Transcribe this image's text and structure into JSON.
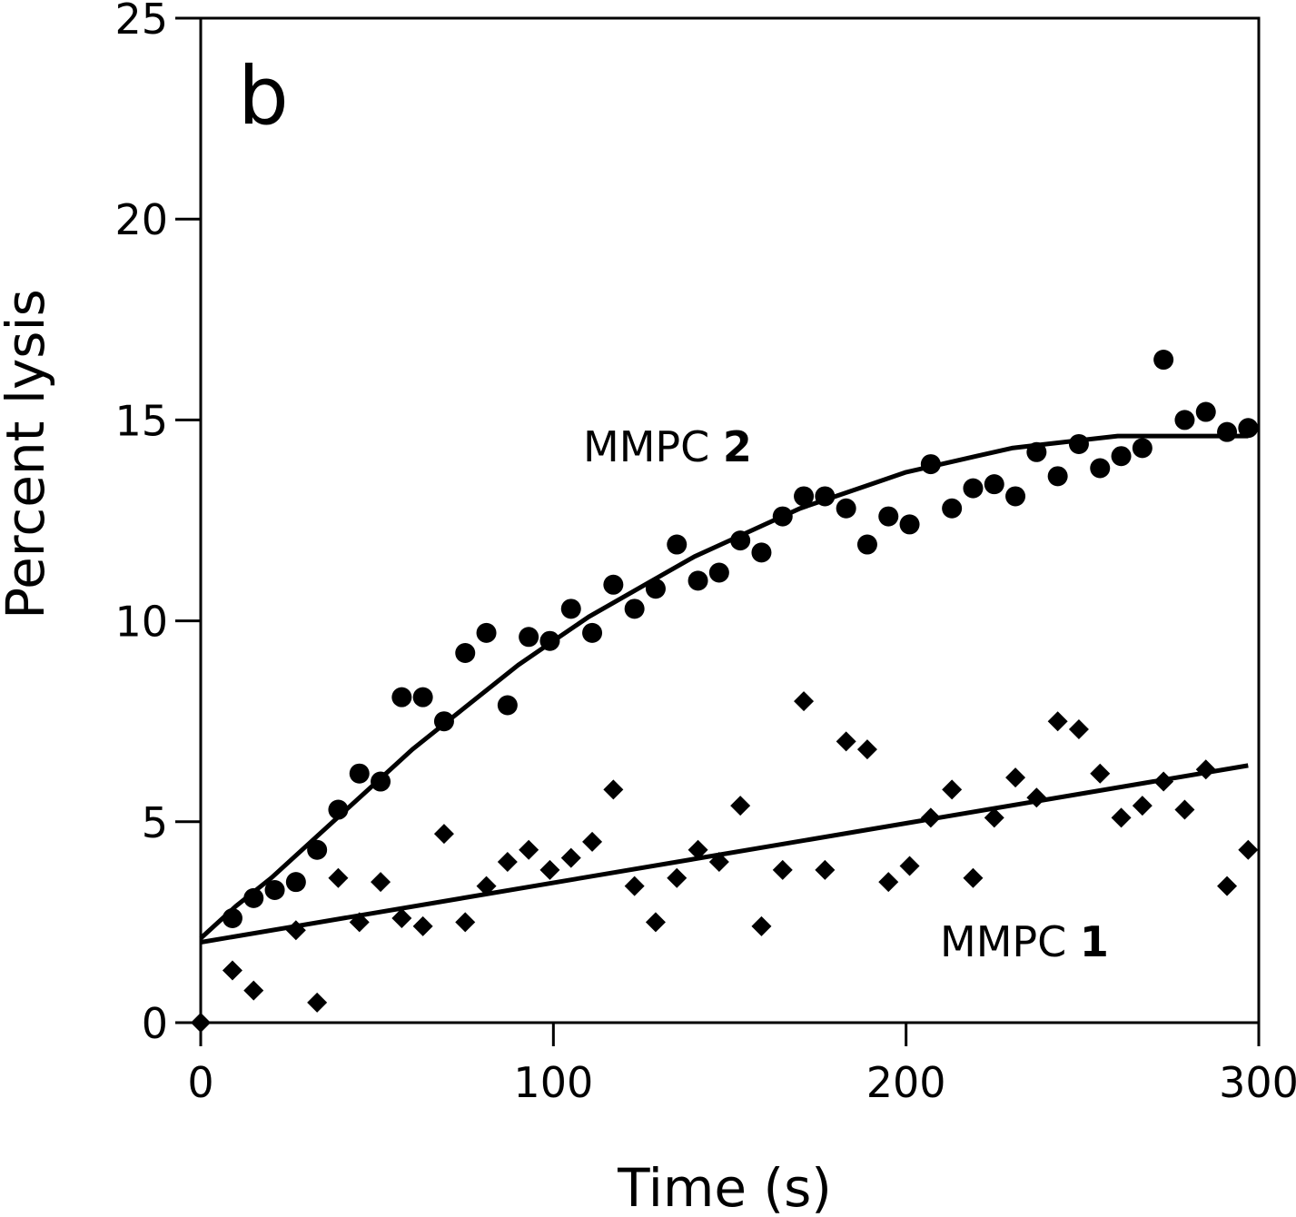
{
  "chart_data": {
    "type": "scatter",
    "panel_label": "b",
    "xlabel": "Time (s)",
    "ylabel": "Percent lysis",
    "xlim": [
      0,
      300
    ],
    "ylim": [
      0,
      25
    ],
    "xticks": [
      0,
      100,
      200,
      300
    ],
    "yticks": [
      0,
      5,
      10,
      15,
      20,
      25
    ],
    "grid": false,
    "legend": "none",
    "series": [
      {
        "name": "MMPC 2",
        "label_prefix": "MMPC ",
        "label_number": "2",
        "marker": "circle",
        "points": [
          [
            9,
            2.6
          ],
          [
            15,
            3.1
          ],
          [
            21,
            3.3
          ],
          [
            27,
            3.5
          ],
          [
            33,
            4.3
          ],
          [
            39,
            5.3
          ],
          [
            45,
            6.2
          ],
          [
            51,
            6.0
          ],
          [
            57,
            8.1
          ],
          [
            63,
            8.1
          ],
          [
            69,
            7.5
          ],
          [
            75,
            9.2
          ],
          [
            81,
            9.7
          ],
          [
            87,
            7.9
          ],
          [
            93,
            9.6
          ],
          [
            99,
            9.5
          ],
          [
            105,
            10.3
          ],
          [
            111,
            9.7
          ],
          [
            117,
            10.9
          ],
          [
            123,
            10.3
          ],
          [
            129,
            10.8
          ],
          [
            135,
            11.9
          ],
          [
            141,
            11.0
          ],
          [
            147,
            11.2
          ],
          [
            153,
            12.0
          ],
          [
            159,
            11.7
          ],
          [
            165,
            12.6
          ],
          [
            171,
            13.1
          ],
          [
            177,
            13.1
          ],
          [
            183,
            12.8
          ],
          [
            189,
            11.9
          ],
          [
            195,
            12.6
          ],
          [
            201,
            12.4
          ],
          [
            207,
            13.9
          ],
          [
            213,
            12.8
          ],
          [
            219,
            13.3
          ],
          [
            225,
            13.4
          ],
          [
            231,
            13.1
          ],
          [
            237,
            14.2
          ],
          [
            243,
            13.6
          ],
          [
            249,
            14.4
          ],
          [
            255,
            13.8
          ],
          [
            261,
            14.1
          ],
          [
            267,
            14.3
          ],
          [
            273,
            16.5
          ],
          [
            279,
            15.0
          ],
          [
            285,
            15.2
          ],
          [
            291,
            14.7
          ],
          [
            297,
            14.8
          ]
        ],
        "fit": [
          [
            0,
            2.1
          ],
          [
            10,
            2.9
          ],
          [
            20,
            3.6
          ],
          [
            30,
            4.4
          ],
          [
            40,
            5.2
          ],
          [
            50,
            6.0
          ],
          [
            60,
            6.8
          ],
          [
            70,
            7.5
          ],
          [
            80,
            8.2
          ],
          [
            90,
            8.9
          ],
          [
            100,
            9.5
          ],
          [
            110,
            10.1
          ],
          [
            120,
            10.6
          ],
          [
            130,
            11.1
          ],
          [
            140,
            11.6
          ],
          [
            150,
            12.0
          ],
          [
            160,
            12.4
          ],
          [
            170,
            12.8
          ],
          [
            180,
            13.1
          ],
          [
            190,
            13.4
          ],
          [
            200,
            13.7
          ],
          [
            210,
            13.9
          ],
          [
            220,
            14.1
          ],
          [
            230,
            14.3
          ],
          [
            240,
            14.4
          ],
          [
            250,
            14.5
          ],
          [
            260,
            14.6
          ],
          [
            270,
            14.6
          ],
          [
            280,
            14.6
          ],
          [
            297,
            14.6
          ]
        ]
      },
      {
        "name": "MMPC 1",
        "label_prefix": "MMPC ",
        "label_number": "1",
        "marker": "diamond",
        "points": [
          [
            0,
            0.0
          ],
          [
            9,
            1.3
          ],
          [
            15,
            0.8
          ],
          [
            27,
            2.3
          ],
          [
            33,
            0.5
          ],
          [
            39,
            3.6
          ],
          [
            45,
            2.5
          ],
          [
            51,
            3.5
          ],
          [
            57,
            2.6
          ],
          [
            63,
            2.4
          ],
          [
            69,
            4.7
          ],
          [
            75,
            2.5
          ],
          [
            81,
            3.4
          ],
          [
            87,
            4.0
          ],
          [
            93,
            4.3
          ],
          [
            99,
            3.8
          ],
          [
            105,
            4.1
          ],
          [
            111,
            4.5
          ],
          [
            117,
            5.8
          ],
          [
            123,
            3.4
          ],
          [
            129,
            2.5
          ],
          [
            135,
            3.6
          ],
          [
            141,
            4.3
          ],
          [
            147,
            4.0
          ],
          [
            153,
            5.4
          ],
          [
            159,
            2.4
          ],
          [
            165,
            3.8
          ],
          [
            171,
            8.0
          ],
          [
            177,
            3.8
          ],
          [
            183,
            7.0
          ],
          [
            189,
            6.8
          ],
          [
            195,
            3.5
          ],
          [
            201,
            3.9
          ],
          [
            207,
            5.1
          ],
          [
            213,
            5.8
          ],
          [
            219,
            3.6
          ],
          [
            225,
            5.1
          ],
          [
            231,
            6.1
          ],
          [
            237,
            5.6
          ],
          [
            243,
            7.5
          ],
          [
            249,
            7.3
          ],
          [
            255,
            6.2
          ],
          [
            261,
            5.1
          ],
          [
            267,
            5.4
          ],
          [
            273,
            6.0
          ],
          [
            279,
            5.3
          ],
          [
            285,
            6.3
          ],
          [
            291,
            3.4
          ],
          [
            297,
            4.3
          ]
        ],
        "fit": [
          [
            0,
            2.0
          ],
          [
            297,
            6.4
          ]
        ]
      }
    ]
  }
}
